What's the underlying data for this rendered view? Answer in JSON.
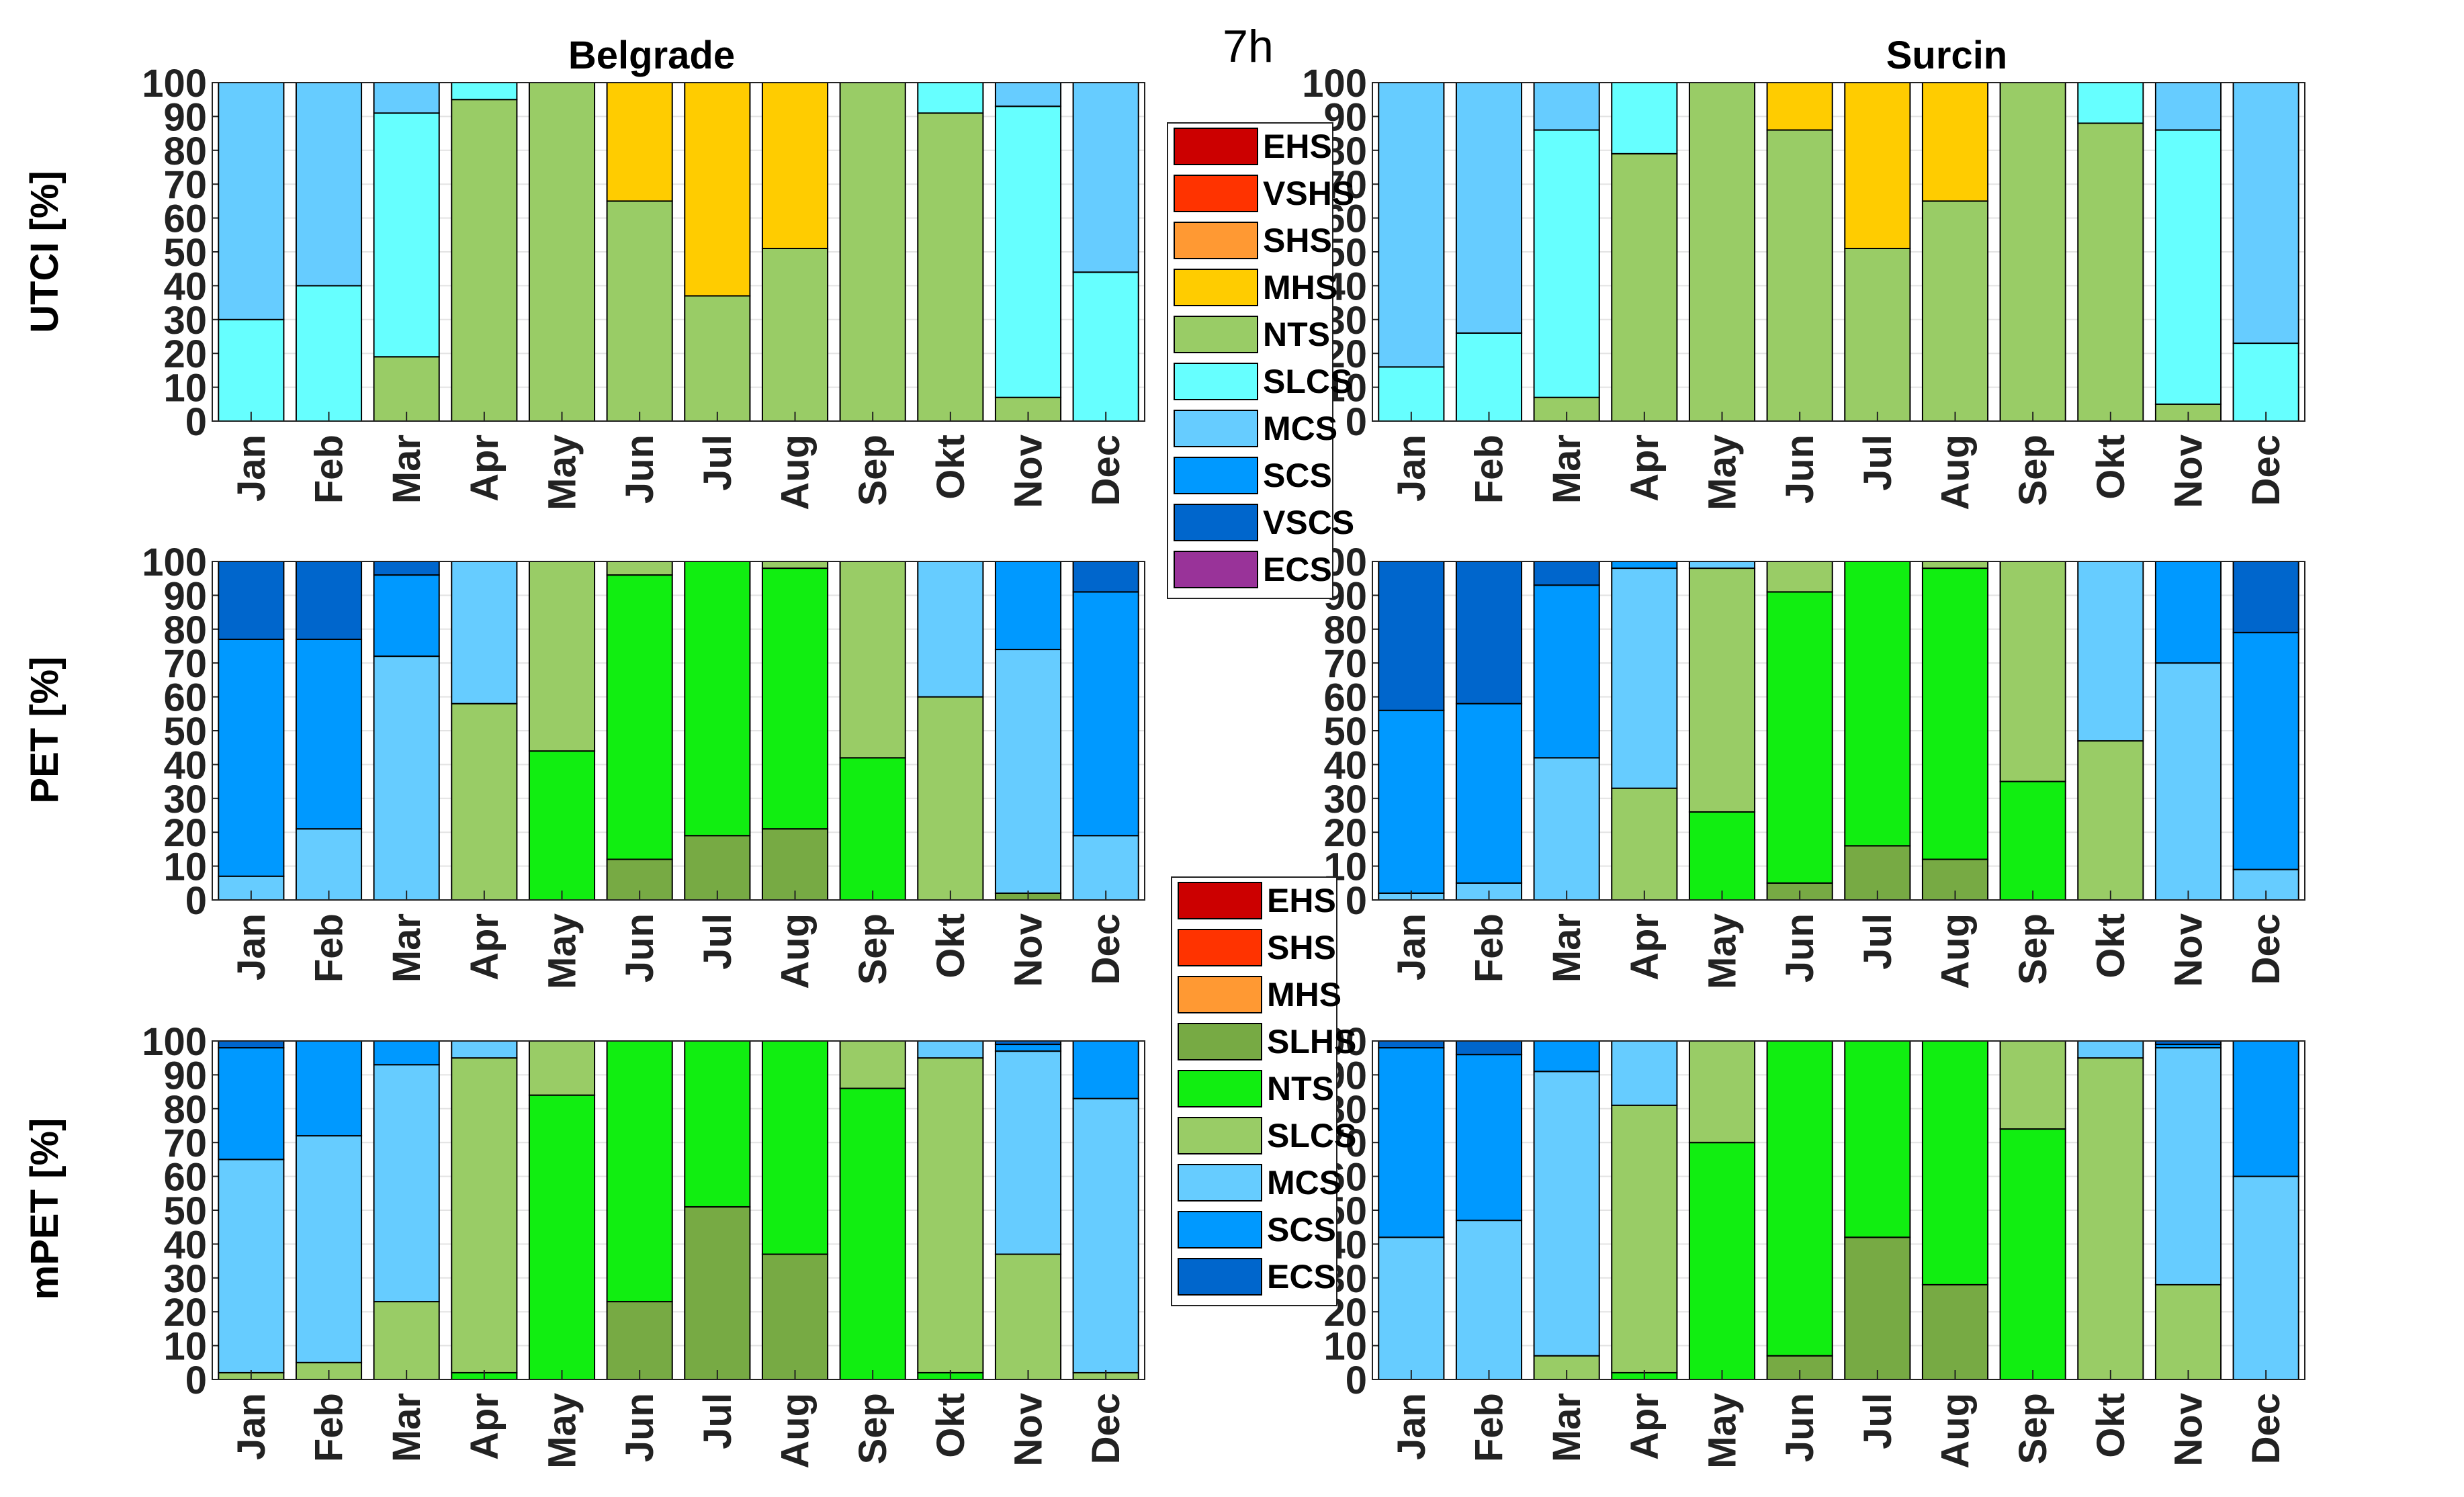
{
  "figure": {
    "title": "7h",
    "columns": [
      "Belgrade",
      "Surcin"
    ],
    "rows": [
      "UTCI [%]",
      "PET [%]",
      "mPET [%]"
    ]
  },
  "legends": [
    {
      "name": "utci-pet",
      "entries": [
        {
          "label": "EHS",
          "color": "#CC0000"
        },
        {
          "label": "VSHS",
          "color": "#FF3300"
        },
        {
          "label": "SHS",
          "color": "#FF9933"
        },
        {
          "label": "MHS",
          "color": "#FFCC00"
        },
        {
          "label": "NTS",
          "color": "#99CC66"
        },
        {
          "label": "SLCS",
          "color": "#66FFFF"
        },
        {
          "label": "MCS",
          "color": "#66CCFF"
        },
        {
          "label": "SCS",
          "color": "#0099FF"
        },
        {
          "label": "VSCS",
          "color": "#0066CC"
        },
        {
          "label": "ECS",
          "color": "#993399"
        }
      ]
    },
    {
      "name": "mpet",
      "entries": [
        {
          "label": "EHS",
          "color": "#CC0000"
        },
        {
          "label": "SHS",
          "color": "#FF3300"
        },
        {
          "label": "MHS",
          "color": "#FF9933"
        },
        {
          "label": "SLHS",
          "color": "#77AA44"
        },
        {
          "label": "NTS",
          "color": "#11EE11"
        },
        {
          "label": "SLCS",
          "color": "#99CC66"
        },
        {
          "label": "MCS",
          "color": "#66CCFF"
        },
        {
          "label": "SCS",
          "color": "#0099FF"
        },
        {
          "label": "ECS",
          "color": "#0066CC"
        }
      ]
    }
  ],
  "chart_data": [
    {
      "type": "bar",
      "stacked": true,
      "title": "Belgrade",
      "ylabel": "UTCI [%]",
      "ylim": [
        0,
        100
      ],
      "yticks": [
        0,
        10,
        20,
        30,
        40,
        50,
        60,
        70,
        80,
        90,
        100
      ],
      "grid": true,
      "categories": [
        "Jan",
        "Feb",
        "Mar",
        "Apr",
        "May",
        "Jun",
        "Jul",
        "Aug",
        "Sep",
        "Okt",
        "Nov",
        "Dec"
      ],
      "series": [
        {
          "name": "NTS",
          "color": "#99CC66",
          "values": [
            0,
            0,
            19,
            95,
            100,
            65,
            37,
            51,
            100,
            91,
            7,
            0
          ]
        },
        {
          "name": "MHS",
          "color": "#FFCC00",
          "values": [
            0,
            0,
            0,
            0,
            0,
            35,
            63,
            49,
            0,
            0,
            0,
            0
          ]
        },
        {
          "name": "SLCS",
          "color": "#66FFFF",
          "values": [
            30,
            40,
            72,
            5,
            0,
            0,
            0,
            0,
            0,
            9,
            86,
            44
          ]
        },
        {
          "name": "MCS",
          "color": "#66CCFF",
          "values": [
            70,
            60,
            9,
            0,
            0,
            0,
            0,
            0,
            0,
            0,
            7,
            56
          ]
        }
      ]
    },
    {
      "type": "bar",
      "stacked": true,
      "title": "Surcin",
      "ylabel": "",
      "ylim": [
        0,
        100
      ],
      "yticks": [
        0,
        10,
        20,
        30,
        40,
        50,
        60,
        70,
        80,
        90,
        100
      ],
      "grid": true,
      "categories": [
        "Jan",
        "Feb",
        "Mar",
        "Apr",
        "May",
        "Jun",
        "Jul",
        "Aug",
        "Sep",
        "Okt",
        "Nov",
        "Dec"
      ],
      "series": [
        {
          "name": "NTS",
          "color": "#99CC66",
          "values": [
            0,
            0,
            7,
            79,
            100,
            86,
            51,
            65,
            100,
            88,
            5,
            0
          ]
        },
        {
          "name": "MHS",
          "color": "#FFCC00",
          "values": [
            0,
            0,
            0,
            0,
            0,
            14,
            49,
            35,
            0,
            0,
            0,
            0
          ]
        },
        {
          "name": "SLCS",
          "color": "#66FFFF",
          "values": [
            16,
            26,
            79,
            21,
            0,
            0,
            0,
            0,
            0,
            12,
            81,
            23
          ]
        },
        {
          "name": "MCS",
          "color": "#66CCFF",
          "values": [
            84,
            74,
            14,
            0,
            0,
            0,
            0,
            0,
            0,
            0,
            14,
            77
          ]
        }
      ]
    },
    {
      "type": "bar",
      "stacked": true,
      "title": "",
      "ylabel": "PET [%]",
      "ylim": [
        0,
        100
      ],
      "yticks": [
        0,
        10,
        20,
        30,
        40,
        50,
        60,
        70,
        80,
        90,
        100
      ],
      "grid": true,
      "categories": [
        "Jan",
        "Feb",
        "Mar",
        "Apr",
        "May",
        "Jun",
        "Jul",
        "Aug",
        "Sep",
        "Okt",
        "Nov",
        "Dec"
      ],
      "series": [
        {
          "name": "SLHS",
          "color": "#77AA44",
          "values": [
            0,
            0,
            0,
            0,
            0,
            12,
            19,
            21,
            0,
            0,
            2,
            0
          ]
        },
        {
          "name": "NTS",
          "color": "#11EE11",
          "values": [
            0,
            0,
            0,
            0,
            44,
            84,
            81,
            77,
            42,
            0,
            0,
            0
          ]
        },
        {
          "name": "SLCS",
          "color": "#99CC66",
          "values": [
            0,
            0,
            0,
            58,
            56,
            4,
            0,
            2,
            58,
            60,
            0,
            0
          ]
        },
        {
          "name": "MCS",
          "color": "#66CCFF",
          "values": [
            7,
            21,
            72,
            42,
            0,
            0,
            0,
            0,
            0,
            40,
            72,
            19
          ]
        },
        {
          "name": "SCS",
          "color": "#0099FF",
          "values": [
            70,
            56,
            24,
            0,
            0,
            0,
            0,
            0,
            0,
            0,
            26,
            72
          ]
        },
        {
          "name": "VSCS",
          "color": "#0066CC",
          "values": [
            23,
            23,
            4,
            0,
            0,
            0,
            0,
            0,
            0,
            0,
            0,
            9
          ]
        }
      ]
    },
    {
      "type": "bar",
      "stacked": true,
      "title": "",
      "ylabel": "",
      "ylim": [
        0,
        100
      ],
      "yticks": [
        0,
        10,
        20,
        30,
        40,
        50,
        60,
        70,
        80,
        90,
        100
      ],
      "grid": true,
      "categories": [
        "Jan",
        "Feb",
        "Mar",
        "Apr",
        "May",
        "Jun",
        "Jul",
        "Aug",
        "Sep",
        "Okt",
        "Nov",
        "Dec"
      ],
      "series": [
        {
          "name": "SLHS",
          "color": "#77AA44",
          "values": [
            0,
            0,
            0,
            0,
            0,
            5,
            16,
            12,
            0,
            0,
            0,
            0
          ]
        },
        {
          "name": "NTS",
          "color": "#11EE11",
          "values": [
            0,
            0,
            0,
            0,
            26,
            86,
            84,
            86,
            35,
            0,
            0,
            0
          ]
        },
        {
          "name": "SLCS",
          "color": "#99CC66",
          "values": [
            0,
            0,
            0,
            33,
            72,
            9,
            0,
            2,
            65,
            47,
            0,
            0
          ]
        },
        {
          "name": "MCS",
          "color": "#66CCFF",
          "values": [
            2,
            5,
            42,
            65,
            2,
            0,
            0,
            0,
            0,
            53,
            70,
            9
          ]
        },
        {
          "name": "SCS",
          "color": "#0099FF",
          "values": [
            54,
            53,
            51,
            2,
            0,
            0,
            0,
            0,
            0,
            0,
            30,
            70
          ]
        },
        {
          "name": "VSCS",
          "color": "#0066CC",
          "values": [
            44,
            42,
            7,
            0,
            0,
            0,
            0,
            0,
            0,
            0,
            0,
            21
          ]
        }
      ]
    },
    {
      "type": "bar",
      "stacked": true,
      "title": "",
      "ylabel": "mPET [%]",
      "ylim": [
        0,
        100
      ],
      "yticks": [
        0,
        10,
        20,
        30,
        40,
        50,
        60,
        70,
        80,
        90,
        100
      ],
      "grid": true,
      "categories": [
        "Jan",
        "Feb",
        "Mar",
        "Apr",
        "May",
        "Jun",
        "Jul",
        "Aug",
        "Sep",
        "Okt",
        "Nov",
        "Dec"
      ],
      "series": [
        {
          "name": "SLHS",
          "color": "#77AA44",
          "values": [
            0,
            0,
            0,
            0,
            0,
            23,
            51,
            37,
            0,
            0,
            0,
            0
          ]
        },
        {
          "name": "NTS",
          "color": "#11EE11",
          "values": [
            0,
            0,
            0,
            2,
            84,
            77,
            49,
            63,
            86,
            2,
            0,
            0
          ]
        },
        {
          "name": "SLCS",
          "color": "#99CC66",
          "values": [
            2,
            5,
            23,
            93,
            16,
            0,
            0,
            0,
            14,
            93,
            37,
            2
          ]
        },
        {
          "name": "MCS",
          "color": "#66CCFF",
          "values": [
            63,
            67,
            70,
            5,
            0,
            0,
            0,
            0,
            0,
            5,
            60,
            81
          ]
        },
        {
          "name": "SCS",
          "color": "#0099FF",
          "values": [
            33,
            28,
            7,
            0,
            0,
            0,
            0,
            0,
            0,
            0,
            2,
            17
          ]
        },
        {
          "name": "ECS",
          "color": "#0066CC",
          "values": [
            2,
            0,
            0,
            0,
            0,
            0,
            0,
            0,
            0,
            0,
            1,
            0
          ]
        }
      ]
    },
    {
      "type": "bar",
      "stacked": true,
      "title": "",
      "ylabel": "",
      "ylim": [
        0,
        100
      ],
      "yticks": [
        0,
        10,
        20,
        30,
        40,
        50,
        60,
        70,
        80,
        90,
        100
      ],
      "grid": true,
      "categories": [
        "Jan",
        "Feb",
        "Mar",
        "Apr",
        "May",
        "Jun",
        "Jul",
        "Aug",
        "Sep",
        "Okt",
        "Nov",
        "Dec"
      ],
      "series": [
        {
          "name": "SLHS",
          "color": "#77AA44",
          "values": [
            0,
            0,
            0,
            0,
            0,
            7,
            42,
            28,
            0,
            0,
            0,
            0
          ]
        },
        {
          "name": "NTS",
          "color": "#11EE11",
          "values": [
            0,
            0,
            0,
            2,
            70,
            93,
            58,
            72,
            74,
            0,
            0,
            0
          ]
        },
        {
          "name": "SLCS",
          "color": "#99CC66",
          "values": [
            0,
            0,
            7,
            79,
            30,
            0,
            0,
            0,
            26,
            95,
            28,
            0
          ]
        },
        {
          "name": "MCS",
          "color": "#66CCFF",
          "values": [
            42,
            47,
            84,
            19,
            0,
            0,
            0,
            0,
            0,
            5,
            70,
            60
          ]
        },
        {
          "name": "SCS",
          "color": "#0099FF",
          "values": [
            56,
            49,
            9,
            0,
            0,
            0,
            0,
            0,
            0,
            0,
            1,
            40
          ]
        },
        {
          "name": "ECS",
          "color": "#0066CC",
          "values": [
            2,
            4,
            0,
            0,
            0,
            0,
            0,
            0,
            0,
            0,
            1,
            0
          ]
        }
      ]
    }
  ]
}
